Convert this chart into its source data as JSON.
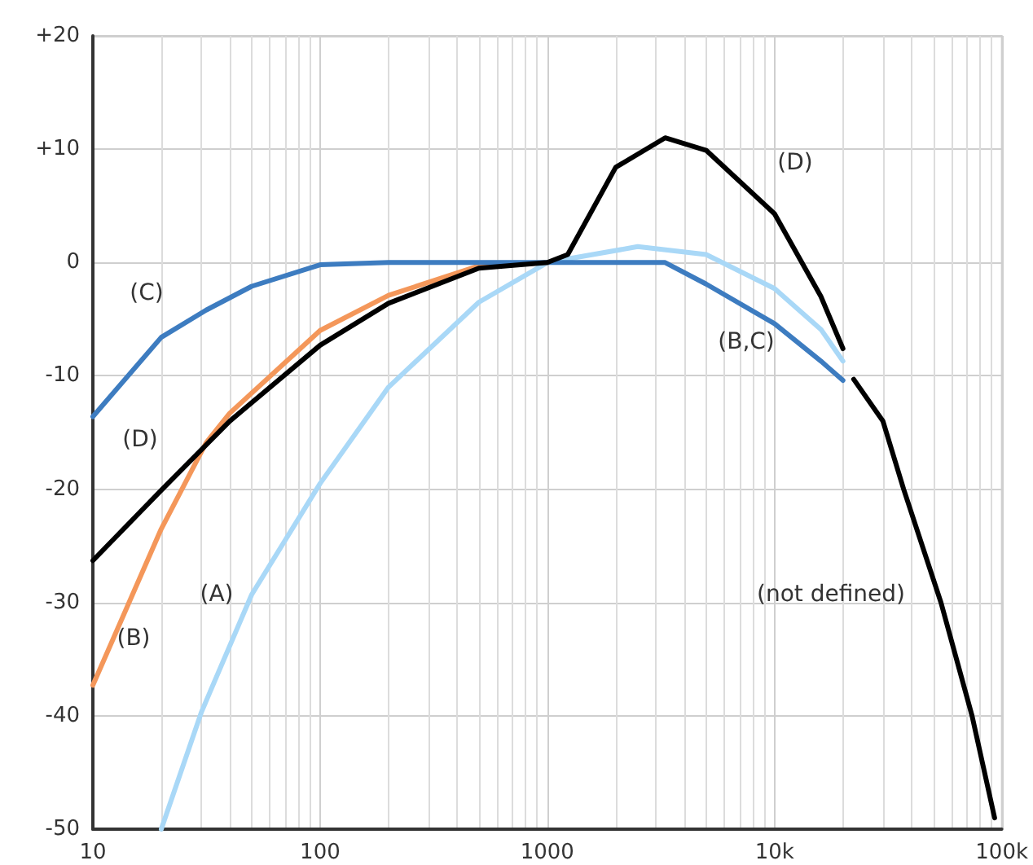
{
  "chart_data": {
    "type": "line",
    "series": [
      {
        "color": "#a9d8f7",
        "x": [
          20,
          30,
          50,
          100,
          200,
          500,
          1000,
          2500,
          5000,
          10000,
          16000,
          20000
        ],
        "values": [
          -50,
          -39.7,
          -29.3,
          -19.5,
          -11,
          -3.5,
          0,
          1.4,
          0.7,
          -2.3,
          -5.9,
          -8.7
        ]
      },
      {
        "color": "#f4975a",
        "x": [
          10,
          20,
          31.5,
          40,
          100,
          200,
          500,
          1000
        ],
        "values": [
          -37.3,
          -23.5,
          -15.9,
          -13.3,
          -6,
          -2.9,
          -0.3,
          0
        ]
      },
      {
        "color": "#3d7cc0",
        "x": [
          10,
          20,
          31.5,
          50,
          100,
          200,
          1000,
          3300,
          5000,
          10000,
          16000,
          20000
        ],
        "values": [
          -13.6,
          -6.6,
          -4.2,
          -2.1,
          -0.2,
          0,
          0,
          0,
          -1.9,
          -5.4,
          -8.7,
          -10.4
        ]
      },
      {
        "color": "#000000",
        "x": [
          10,
          20,
          40,
          100,
          200,
          500,
          1000,
          1230,
          2000,
          3300,
          5000,
          10000,
          16000,
          20000,
          21000,
          22300,
          30000,
          37000,
          54000,
          74000,
          93000
        ],
        "values": [
          -26.3,
          -20.1,
          -14,
          -7.3,
          -3.6,
          -0.5,
          0,
          0.7,
          8.4,
          11,
          9.9,
          4.3,
          -3,
          -7.6,
          null,
          -10.3,
          -14,
          -20,
          -30,
          -40,
          -49
        ]
      }
    ],
    "xlim": [
      10,
      100000
    ],
    "xticks": [
      {
        "value": 10,
        "label": "10"
      },
      {
        "value": 100,
        "label": "100"
      },
      {
        "value": 1000,
        "label": "1000"
      },
      {
        "value": 10000,
        "label": "10k"
      },
      {
        "value": 100000,
        "label": "100k"
      }
    ],
    "ylim": [
      -50,
      20
    ],
    "yticks": [
      -50,
      -40,
      -30,
      -20,
      -10,
      0,
      {
        "value": 10,
        "label": "+10"
      },
      {
        "value": 20,
        "label": "+20"
      }
    ],
    "log": "x",
    "grid": true,
    "marker": "none",
    "line_style": "solid",
    "annotations": [
      "(C)",
      "(D)",
      "(A)",
      "(B)",
      "(D)",
      "(B,C)",
      "(not defined)"
    ]
  }
}
